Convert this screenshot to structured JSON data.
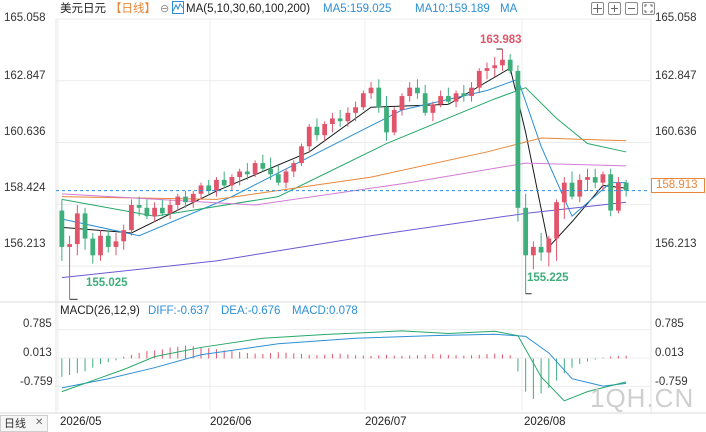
{
  "header": {
    "symbol": "美元日元",
    "period": "日线",
    "period_icon": "circle-minus-icon",
    "ma_icon": "ma-chart-icon",
    "ma_list": "MA(5,10,30,60,100,200)",
    "ma5": "MA5:159.025",
    "ma10": "MA10:159.189",
    "ma_more": "MA",
    "tools": [
      "crosshair-icon",
      "zoom-in-icon",
      "zoom-out-icon",
      "expand-icon"
    ]
  },
  "price_axis": [
    "165.058",
    "162.847",
    "160.636",
    "158.424",
    "156.213"
  ],
  "current_price": "158.913",
  "high_label": "163.983",
  "low_label": "155.225",
  "left_low_label": "155.025",
  "macd": {
    "title": "MACD(26,12,9)",
    "diff": "DIFF:-0.637",
    "dea": "DEA:-0.676",
    "macd": "MACD:0.078",
    "axis": [
      "0.785",
      "0.013",
      "-0.759"
    ],
    "toggle_label": "日线",
    "close_icon": "close-icon"
  },
  "date_axis": [
    "2026/05",
    "2026/06",
    "2026/07",
    "2026/08"
  ],
  "watermark": "1QH.CN",
  "colors": {
    "up": "#e0556c",
    "down": "#3fae7d",
    "ma5": "#1a1a1a",
    "ma10": "#2d8fd6",
    "ma30": "#27a86a",
    "ma60": "#e8873a",
    "ma100": "#d47bd6",
    "ma200": "#6a5ad6",
    "price_tag": "#e8873a",
    "accent_blue": "#2d8fd6"
  },
  "chart_data": {
    "type": "candlestick",
    "price_range": [
      155.0,
      165.058
    ],
    "candles": [
      [
        158.2,
        158.6,
        156.4,
        156.9
      ],
      [
        156.9,
        157.3,
        155.025,
        157.0
      ],
      [
        157.0,
        158.4,
        156.6,
        158.1
      ],
      [
        158.1,
        158.3,
        156.8,
        157.2
      ],
      [
        157.2,
        157.4,
        156.3,
        156.6
      ],
      [
        156.6,
        157.5,
        156.4,
        157.3
      ],
      [
        157.3,
        157.5,
        156.7,
        156.9
      ],
      [
        156.9,
        157.4,
        156.6,
        157.1
      ],
      [
        157.1,
        157.7,
        156.8,
        157.5
      ],
      [
        157.5,
        158.6,
        157.3,
        158.4
      ],
      [
        158.4,
        158.7,
        158.0,
        158.3
      ],
      [
        158.3,
        158.6,
        157.9,
        158.0
      ],
      [
        158.0,
        158.5,
        157.8,
        158.3
      ],
      [
        158.3,
        158.6,
        158.0,
        158.1
      ],
      [
        158.1,
        158.6,
        157.9,
        158.4
      ],
      [
        158.4,
        158.8,
        158.2,
        158.7
      ],
      [
        158.7,
        158.9,
        158.3,
        158.5
      ],
      [
        158.5,
        158.9,
        158.3,
        158.8
      ],
      [
        158.8,
        159.2,
        158.6,
        159.1
      ],
      [
        159.1,
        159.3,
        158.8,
        158.9
      ],
      [
        158.9,
        159.4,
        158.7,
        159.3
      ],
      [
        159.3,
        159.6,
        159.0,
        159.1
      ],
      [
        159.1,
        159.5,
        158.9,
        159.4
      ],
      [
        159.4,
        159.7,
        159.1,
        159.6
      ],
      [
        159.6,
        159.9,
        159.3,
        159.5
      ],
      [
        159.5,
        160.0,
        159.4,
        159.9
      ],
      [
        159.9,
        160.2,
        159.6,
        159.7
      ],
      [
        159.7,
        160.1,
        159.3,
        159.5
      ],
      [
        159.5,
        159.8,
        159.1,
        159.2
      ],
      [
        159.2,
        159.7,
        159.0,
        159.6
      ],
      [
        159.6,
        160.0,
        159.4,
        159.9
      ],
      [
        159.9,
        160.6,
        159.8,
        160.5
      ],
      [
        160.5,
        161.3,
        160.3,
        161.2
      ],
      [
        161.2,
        161.5,
        160.7,
        160.9
      ],
      [
        160.9,
        161.4,
        160.7,
        161.3
      ],
      [
        161.3,
        161.7,
        161.0,
        161.5
      ],
      [
        161.5,
        161.8,
        161.2,
        161.4
      ],
      [
        161.4,
        161.9,
        161.2,
        161.7
      ],
      [
        161.7,
        162.1,
        161.4,
        161.9
      ],
      [
        161.9,
        162.5,
        161.8,
        162.4
      ],
      [
        162.4,
        162.8,
        162.2,
        162.6
      ],
      [
        162.6,
        162.9,
        161.7,
        161.9
      ],
      [
        161.9,
        162.3,
        160.7,
        161.0
      ],
      [
        161.0,
        161.9,
        160.9,
        161.8
      ],
      [
        161.8,
        162.4,
        161.6,
        162.3
      ],
      [
        162.3,
        162.8,
        162.1,
        162.6
      ],
      [
        162.6,
        162.9,
        162.2,
        162.4
      ],
      [
        162.4,
        162.7,
        161.6,
        161.7
      ],
      [
        161.7,
        162.1,
        161.4,
        162.0
      ],
      [
        162.0,
        162.5,
        161.9,
        162.3
      ],
      [
        162.3,
        162.6,
        162.0,
        162.1
      ],
      [
        162.1,
        162.5,
        161.9,
        162.4
      ],
      [
        162.4,
        162.7,
        162.1,
        162.3
      ],
      [
        162.3,
        162.8,
        162.1,
        162.6
      ],
      [
        162.6,
        163.3,
        162.4,
        163.2
      ],
      [
        163.2,
        163.5,
        162.9,
        163.3
      ],
      [
        163.3,
        163.7,
        163.0,
        163.4
      ],
      [
        163.4,
        163.983,
        163.2,
        163.6
      ],
      [
        163.6,
        163.8,
        163.1,
        163.2
      ],
      [
        163.2,
        163.4,
        157.8,
        158.3
      ],
      [
        158.3,
        158.8,
        155.225,
        156.6
      ],
      [
        156.6,
        157.1,
        156.1,
        156.9
      ],
      [
        156.9,
        157.4,
        156.4,
        156.7
      ],
      [
        156.7,
        157.3,
        156.2,
        157.2
      ],
      [
        157.2,
        158.6,
        156.4,
        158.5
      ],
      [
        158.5,
        159.4,
        157.9,
        159.2
      ],
      [
        159.2,
        159.6,
        158.6,
        158.7
      ],
      [
        158.7,
        159.5,
        158.5,
        159.3
      ],
      [
        159.3,
        159.7,
        158.9,
        159.4
      ],
      [
        159.4,
        159.7,
        159.0,
        159.2
      ],
      [
        159.2,
        159.6,
        158.9,
        159.5
      ],
      [
        159.5,
        159.7,
        158.0,
        158.2
      ],
      [
        158.2,
        159.4,
        158.1,
        159.2
      ],
      [
        159.2,
        159.3,
        158.7,
        158.913
      ]
    ],
    "ma_series": {
      "ma5": [
        [
          0,
          157.6
        ],
        [
          9,
          157.4
        ],
        [
          20,
          158.9
        ],
        [
          32,
          160.3
        ],
        [
          40,
          161.9
        ],
        [
          50,
          162.0
        ],
        [
          58,
          163.3
        ],
        [
          60,
          161.0
        ],
        [
          63,
          156.9
        ],
        [
          66,
          157.8
        ],
        [
          70,
          159.1
        ],
        [
          73,
          159.0
        ]
      ],
      "ma10": [
        [
          0,
          157.9
        ],
        [
          10,
          157.3
        ],
        [
          22,
          158.7
        ],
        [
          34,
          160.4
        ],
        [
          44,
          161.8
        ],
        [
          55,
          162.5
        ],
        [
          59,
          162.9
        ],
        [
          62,
          160.5
        ],
        [
          66,
          158.0
        ],
        [
          71,
          159.2
        ],
        [
          73,
          159.2
        ]
      ],
      "ma30": [
        [
          0,
          158.6
        ],
        [
          12,
          158.0
        ],
        [
          28,
          158.7
        ],
        [
          42,
          160.6
        ],
        [
          56,
          162.2
        ],
        [
          60,
          162.6
        ],
        [
          64,
          161.5
        ],
        [
          68,
          160.6
        ],
        [
          73,
          160.3
        ]
      ],
      "ma60": [
        [
          0,
          158.7
        ],
        [
          20,
          158.6
        ],
        [
          40,
          159.4
        ],
        [
          55,
          160.3
        ],
        [
          62,
          160.8
        ],
        [
          73,
          160.7
        ]
      ],
      "ma100": [
        [
          0,
          158.8
        ],
        [
          25,
          158.4
        ],
        [
          45,
          159.2
        ],
        [
          60,
          159.9
        ],
        [
          73,
          159.8
        ]
      ],
      "ma200": [
        [
          0,
          155.8
        ],
        [
          20,
          156.4
        ],
        [
          40,
          157.3
        ],
        [
          60,
          158.1
        ],
        [
          73,
          158.5
        ]
      ]
    },
    "macd": {
      "range": [
        -1.4,
        1.1
      ],
      "diff": [
        [
          0,
          -0.9
        ],
        [
          4,
          -0.6
        ],
        [
          8,
          -0.3
        ],
        [
          12,
          0.05
        ],
        [
          18,
          0.3
        ],
        [
          26,
          0.55
        ],
        [
          34,
          0.65
        ],
        [
          44,
          0.75
        ],
        [
          50,
          0.68
        ],
        [
          56,
          0.74
        ],
        [
          59,
          0.62
        ],
        [
          62,
          -0.5
        ],
        [
          65,
          -1.15
        ],
        [
          68,
          -0.9
        ],
        [
          73,
          -0.637
        ]
      ],
      "dea": [
        [
          0,
          -0.8
        ],
        [
          6,
          -0.55
        ],
        [
          12,
          -0.25
        ],
        [
          18,
          0.1
        ],
        [
          28,
          0.4
        ],
        [
          38,
          0.55
        ],
        [
          48,
          0.62
        ],
        [
          56,
          0.66
        ],
        [
          60,
          0.6
        ],
        [
          63,
          0.15
        ],
        [
          66,
          -0.55
        ],
        [
          70,
          -0.75
        ],
        [
          73,
          -0.676
        ]
      ],
      "hist": [
        -0.5,
        -0.45,
        -0.4,
        -0.35,
        -0.25,
        -0.15,
        -0.1,
        -0.05,
        0.05,
        0.1,
        0.15,
        0.2,
        0.22,
        0.25,
        0.3,
        0.32,
        0.35,
        0.33,
        0.3,
        0.28,
        0.25,
        0.22,
        0.2,
        0.18,
        0.15,
        0.13,
        0.12,
        0.15,
        0.17,
        0.16,
        0.14,
        0.12,
        0.1,
        0.09,
        0.1,
        0.12,
        0.13,
        0.11,
        0.09,
        0.08,
        0.07,
        0.09,
        0.1,
        0.08,
        0.07,
        0.08,
        0.09,
        0.1,
        0.12,
        0.11,
        0.1,
        0.09,
        0.08,
        0.09,
        0.1,
        0.12,
        0.13,
        0.11,
        0.09,
        -0.35,
        -0.9,
        -1.1,
        -0.95,
        -0.8,
        -0.6,
        -0.4,
        -0.25,
        -0.15,
        -0.08,
        -0.03,
        0.02,
        0.05,
        0.07,
        0.078
      ]
    }
  }
}
